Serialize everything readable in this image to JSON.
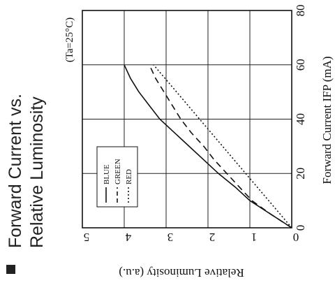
{
  "title": {
    "bullet": "■",
    "line1": "Forward Current vs.",
    "line2": "Relative Luminosity"
  },
  "chart_data": {
    "type": "line",
    "rotation": "rotated 90 degrees counter-clockwise",
    "x_label": "Forward Current  IFP (mA)",
    "y_label": "Relative Luminosity (a.u.)",
    "condition": "(Ta=25°C)",
    "x_range": [
      0,
      80
    ],
    "y_range": [
      0,
      5
    ],
    "x_ticks": [
      "0",
      "20",
      "40",
      "60",
      "80"
    ],
    "y_ticks": [
      "0",
      "1",
      "2",
      "3",
      "4",
      "5"
    ],
    "grid": true,
    "legend_position": "lower-middle",
    "series": [
      {
        "name": "BLUE",
        "style": "solid",
        "x": [
          0,
          5,
          10,
          15,
          20,
          25,
          30,
          35,
          40,
          45,
          50,
          55,
          60
        ],
        "y": [
          0,
          0.5,
          1.0,
          1.35,
          1.75,
          2.1,
          2.45,
          2.8,
          3.15,
          3.4,
          3.65,
          3.85,
          4.0
        ]
      },
      {
        "name": "GREEN",
        "style": "dashed",
        "x": [
          0,
          5,
          10,
          15,
          20,
          25,
          30,
          35,
          40,
          45,
          50,
          55,
          60
        ],
        "y": [
          0,
          0.5,
          0.95,
          1.25,
          1.55,
          1.85,
          2.1,
          2.4,
          2.65,
          2.85,
          3.05,
          3.25,
          3.4
        ]
      },
      {
        "name": "RED",
        "style": "dotted",
        "x": [
          0,
          10,
          20,
          30,
          40,
          50,
          60
        ],
        "y": [
          0,
          0.55,
          1.1,
          1.65,
          2.2,
          2.75,
          3.3
        ]
      }
    ]
  }
}
